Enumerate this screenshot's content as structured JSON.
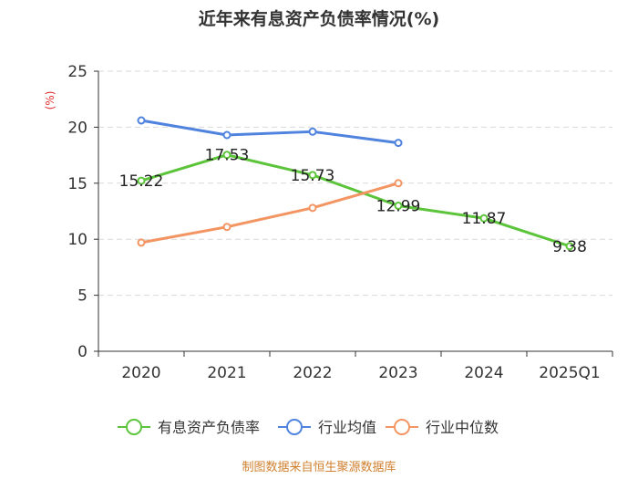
{
  "chart_data": {
    "type": "line",
    "title": "近年来有息资产负债率情况(%)",
    "ylabel": "(%)",
    "categories": [
      "2020",
      "2021",
      "2022",
      "2023",
      "2024",
      "2025Q1"
    ],
    "ylim": [
      0,
      25
    ],
    "yticks": [
      "0",
      "5",
      "10",
      "15",
      "20",
      "25"
    ],
    "grid": true,
    "legend_position": "bottom",
    "series": [
      {
        "name": "有息资产负债率",
        "color": "#5cc43a",
        "values": [
          15.22,
          17.53,
          15.73,
          12.99,
          11.87,
          9.38
        ],
        "labels": [
          "15.22",
          "17.53",
          "15.73",
          "12.99",
          "11.87",
          "9.38"
        ]
      },
      {
        "name": "行业均值",
        "color": "#4f83de",
        "values": [
          20.6,
          19.3,
          19.6,
          18.6,
          null,
          null
        ]
      },
      {
        "name": "行业中位数",
        "color": "#f39563",
        "values": [
          9.7,
          11.1,
          12.8,
          15.0,
          null,
          null
        ]
      }
    ]
  },
  "source": "制图数据来自恒生聚源数据库"
}
